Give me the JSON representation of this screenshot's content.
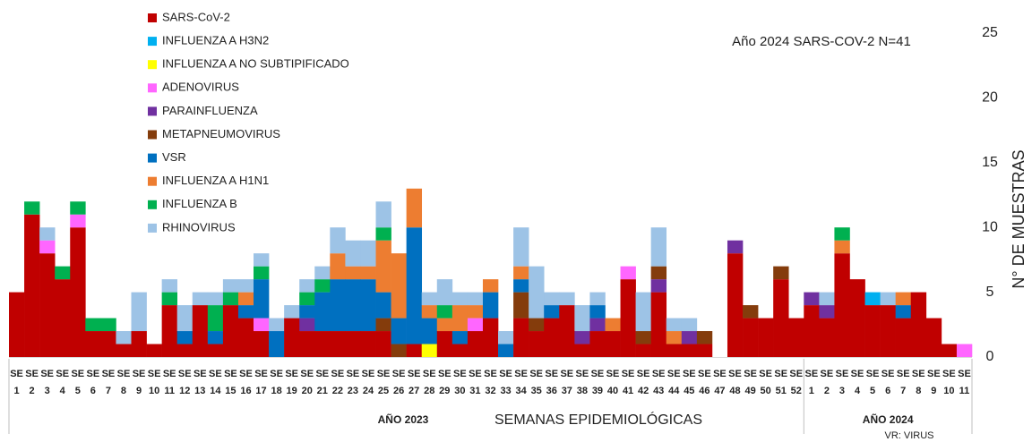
{
  "chart_data": {
    "type": "bar",
    "stacked": true,
    "annotation": "Año 2024 SARS-COV-2 N=41",
    "y_label": "N° DE MUESTRAS",
    "x_label": "SEMANAS EPIDEMIOLÓGICAS",
    "note": "VR: VIRUS",
    "group_labels": [
      "AÑO 2023",
      "AÑO 2024"
    ],
    "category_prefix": "SE",
    "categories": [
      "1",
      "2",
      "3",
      "4",
      "5",
      "6",
      "7",
      "8",
      "9",
      "10",
      "11",
      "12",
      "13",
      "14",
      "15",
      "16",
      "17",
      "18",
      "19",
      "20",
      "21",
      "22",
      "23",
      "24",
      "25",
      "26",
      "27",
      "28",
      "29",
      "30",
      "31",
      "32",
      "33",
      "34",
      "35",
      "36",
      "37",
      "38",
      "39",
      "40",
      "41",
      "42",
      "43",
      "44",
      "45",
      "46",
      "47",
      "48",
      "49",
      "50",
      "51",
      "52",
      "1",
      "2",
      "3",
      "4",
      "5",
      "6",
      "7",
      "8",
      "9",
      "10",
      "11"
    ],
    "ylim": [
      0,
      25
    ],
    "yticks": [
      0,
      5,
      10,
      15,
      20,
      25
    ],
    "series": [
      {
        "name": "SARS-CoV-2",
        "color": "#c00000",
        "values": [
          5,
          11,
          8,
          6,
          10,
          2,
          2,
          1,
          2,
          1,
          4,
          1,
          4,
          1,
          4,
          3,
          2,
          0,
          3,
          2,
          2,
          2,
          2,
          2,
          2,
          0,
          1,
          0,
          2,
          1,
          2,
          3,
          0,
          3,
          2,
          3,
          4,
          1,
          2,
          2,
          6,
          1,
          5,
          1,
          1,
          1,
          0,
          8,
          3,
          3,
          6,
          3,
          4,
          3,
          8,
          6,
          4,
          4,
          3,
          5,
          3,
          1,
          0
        ]
      },
      {
        "name": "INFLUENZA A H3N2",
        "color": "#00b0f0",
        "values": [
          0,
          0,
          0,
          0,
          0,
          0,
          0,
          0,
          0,
          0,
          0,
          0,
          0,
          0,
          0,
          0,
          0,
          0,
          0,
          0,
          0,
          0,
          0,
          0,
          0,
          0,
          0,
          0,
          0,
          0,
          0,
          0,
          0,
          0,
          0,
          0,
          0,
          0,
          0,
          0,
          0,
          0,
          0,
          0,
          0,
          0,
          0,
          0,
          0,
          0,
          0,
          0,
          0,
          0,
          0,
          0,
          1,
          0,
          0,
          0,
          0,
          0,
          0
        ]
      },
      {
        "name": "INFLUENZA A NO SUBTIPIFICADO",
        "color": "#ffff00",
        "values": [
          0,
          0,
          0,
          0,
          0,
          0,
          0,
          0,
          0,
          0,
          0,
          0,
          0,
          0,
          0,
          0,
          0,
          0,
          0,
          0,
          0,
          0,
          0,
          0,
          0,
          0,
          0,
          1,
          0,
          0,
          0,
          0,
          0,
          0,
          0,
          0,
          0,
          0,
          0,
          0,
          0,
          0,
          0,
          0,
          0,
          0,
          0,
          0,
          0,
          0,
          0,
          0,
          0,
          0,
          0,
          0,
          0,
          0,
          0,
          0,
          0,
          0,
          0
        ]
      },
      {
        "name": "ADENOVIRUS",
        "color": "#ff66ff",
        "values": [
          0,
          0,
          1,
          0,
          1,
          0,
          0,
          0,
          0,
          0,
          0,
          0,
          0,
          0,
          0,
          0,
          1,
          0,
          0,
          0,
          0,
          0,
          0,
          0,
          0,
          0,
          0,
          0,
          0,
          0,
          1,
          0,
          0,
          0,
          0,
          0,
          0,
          0,
          0,
          0,
          1,
          0,
          0,
          0,
          0,
          0,
          0,
          0,
          0,
          0,
          0,
          0,
          0,
          0,
          0,
          0,
          0,
          0,
          0,
          0,
          0,
          0,
          1
        ]
      },
      {
        "name": "PARAINFLUENZA",
        "color": "#7030a0",
        "values": [
          0,
          0,
          0,
          0,
          0,
          0,
          0,
          0,
          0,
          0,
          0,
          0,
          0,
          0,
          0,
          0,
          0,
          0,
          0,
          1,
          0,
          0,
          0,
          0,
          0,
          0,
          0,
          0,
          0,
          0,
          0,
          0,
          0,
          0,
          0,
          0,
          0,
          1,
          1,
          0,
          0,
          0,
          1,
          0,
          1,
          0,
          0,
          1,
          0,
          0,
          0,
          0,
          1,
          1,
          0,
          0,
          0,
          0,
          0,
          0,
          0,
          0,
          0
        ]
      },
      {
        "name": "METAPNEUMOVIRUS",
        "color": "#843c0c",
        "values": [
          0,
          0,
          0,
          0,
          0,
          0,
          0,
          0,
          0,
          0,
          0,
          0,
          0,
          0,
          0,
          0,
          0,
          0,
          0,
          0,
          0,
          0,
          0,
          0,
          1,
          1,
          0,
          0,
          0,
          0,
          0,
          0,
          0,
          2,
          1,
          0,
          0,
          0,
          0,
          0,
          0,
          1,
          1,
          0,
          0,
          1,
          0,
          0,
          1,
          0,
          1,
          0,
          0,
          0,
          0,
          0,
          0,
          0,
          0,
          0,
          0,
          0,
          0
        ]
      },
      {
        "name": "VSR",
        "color": "#0070c0",
        "values": [
          0,
          0,
          0,
          0,
          0,
          0,
          0,
          0,
          0,
          0,
          0,
          1,
          0,
          1,
          0,
          1,
          3,
          2,
          0,
          1,
          3,
          4,
          4,
          4,
          2,
          2,
          9,
          2,
          0,
          1,
          0,
          2,
          1,
          1,
          0,
          1,
          0,
          0,
          1,
          0,
          0,
          0,
          0,
          0,
          0,
          0,
          0,
          0,
          0,
          0,
          0,
          0,
          0,
          0,
          0,
          0,
          0,
          0,
          1,
          0,
          0,
          0,
          0
        ]
      },
      {
        "name": "INFLUENZA A H1N1",
        "color": "#ed7d31",
        "values": [
          0,
          0,
          0,
          0,
          0,
          0,
          0,
          0,
          0,
          0,
          0,
          0,
          0,
          0,
          0,
          1,
          0,
          0,
          0,
          0,
          0,
          2,
          1,
          1,
          4,
          5,
          3,
          1,
          1,
          2,
          1,
          1,
          0,
          1,
          0,
          0,
          0,
          0,
          0,
          1,
          0,
          0,
          0,
          1,
          0,
          0,
          0,
          0,
          0,
          0,
          0,
          0,
          0,
          0,
          1,
          0,
          0,
          0,
          1,
          0,
          0,
          0,
          0
        ]
      },
      {
        "name": "INFLUENZA B",
        "color": "#00b050",
        "values": [
          0,
          1,
          0,
          1,
          1,
          1,
          1,
          0,
          0,
          0,
          1,
          0,
          0,
          2,
          1,
          0,
          1,
          0,
          0,
          1,
          1,
          0,
          0,
          0,
          1,
          0,
          0,
          0,
          1,
          0,
          0,
          0,
          0,
          0,
          0,
          0,
          0,
          0,
          0,
          0,
          0,
          0,
          0,
          0,
          0,
          0,
          0,
          0,
          0,
          0,
          0,
          0,
          0,
          0,
          1,
          0,
          0,
          0,
          0,
          0,
          0,
          0,
          0
        ]
      },
      {
        "name": "RHINOVIRUS",
        "color": "#9dc3e6",
        "values": [
          0,
          0,
          1,
          0,
          0,
          0,
          0,
          1,
          3,
          0,
          1,
          2,
          1,
          1,
          1,
          1,
          1,
          1,
          1,
          1,
          1,
          2,
          2,
          2,
          2,
          0,
          0,
          1,
          2,
          1,
          1,
          0,
          1,
          3,
          4,
          1,
          1,
          2,
          1,
          0,
          0,
          3,
          3,
          1,
          1,
          0,
          0,
          0,
          0,
          0,
          0,
          0,
          0,
          1,
          0,
          0,
          0,
          1,
          0,
          0,
          0,
          0,
          0
        ]
      }
    ]
  }
}
